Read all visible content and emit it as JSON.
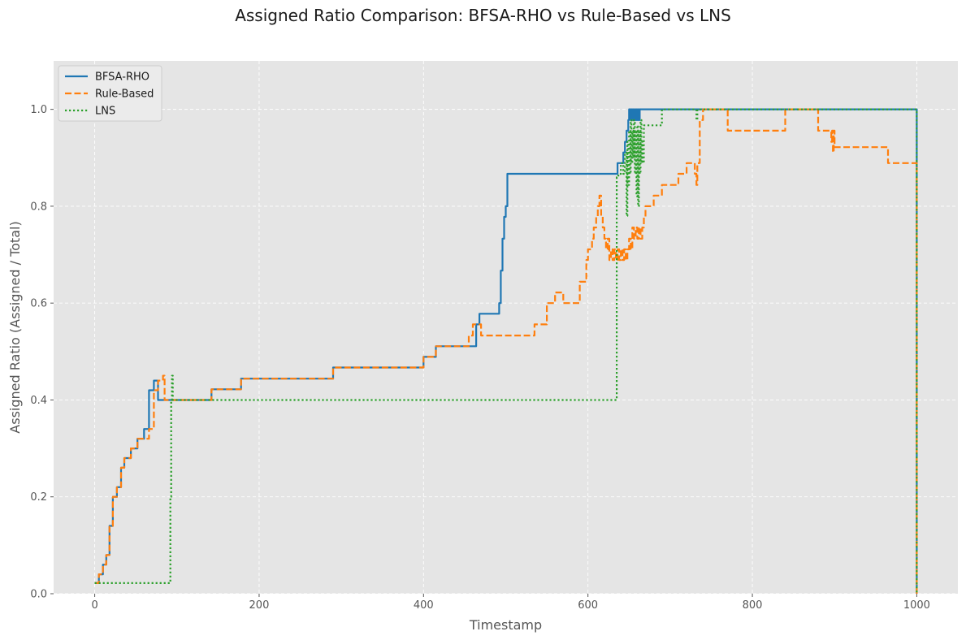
{
  "chart_data": {
    "type": "line",
    "title": "Assigned Ratio Comparison: BFSA-RHO vs Rule-Based vs LNS",
    "xlabel": "Timestamp",
    "ylabel": "Assigned Ratio (Assigned / Total)",
    "xlim": [
      -50,
      1050
    ],
    "ylim": [
      0.0,
      1.1
    ],
    "xticks": [
      0,
      200,
      400,
      600,
      800,
      1000
    ],
    "yticks": [
      0.0,
      0.2,
      0.4,
      0.6,
      0.8,
      1.0
    ],
    "xtick_labels": [
      "0",
      "200",
      "400",
      "600",
      "800",
      "1000"
    ],
    "ytick_labels": [
      "0.0",
      "0.2",
      "0.4",
      "0.6",
      "0.8",
      "1.0"
    ],
    "grid": true,
    "legend_position": "top-left",
    "series": [
      {
        "name": "BFSA-RHO",
        "color": "#1f77b4",
        "style": "solid",
        "x": [
          0,
          5,
          10,
          14,
          18,
          22,
          27,
          32,
          36,
          40,
          44,
          48,
          52,
          56,
          60,
          66,
          72,
          77,
          83,
          85,
          87,
          88,
          91,
          142,
          178,
          290,
          400,
          415,
          460,
          464,
          468,
          482,
          492,
          494,
          496,
          498,
          500,
          502,
          504,
          540,
          630,
          636,
          640,
          643,
          645,
          647,
          649,
          650,
          652,
          653,
          654,
          655,
          656,
          657,
          658,
          659,
          660,
          661,
          662,
          663,
          664,
          665,
          666,
          670,
          800,
          900,
          999,
          1000
        ],
        "y": [
          0.022,
          0.04,
          0.06,
          0.08,
          0.14,
          0.2,
          0.22,
          0.26,
          0.28,
          0.28,
          0.3,
          0.3,
          0.32,
          0.32,
          0.34,
          0.42,
          0.44,
          0.4,
          0.4,
          0.4,
          0.4,
          0.4,
          0.4,
          0.422,
          0.444,
          0.467,
          0.489,
          0.511,
          0.511,
          0.556,
          0.578,
          0.578,
          0.6,
          0.667,
          0.733,
          0.778,
          0.8,
          0.867,
          0.867,
          0.867,
          0.867,
          0.889,
          0.889,
          0.911,
          0.933,
          0.956,
          0.978,
          1.0,
          0.978,
          1.0,
          0.978,
          1.0,
          0.978,
          1.0,
          0.978,
          1.0,
          0.978,
          1.0,
          0.978,
          1.0,
          1.0,
          1.0,
          1.0,
          1.0,
          1.0,
          1.0,
          1.0,
          0.0
        ]
      },
      {
        "name": "Rule-Based",
        "color": "#ff7f0e",
        "style": "dashed",
        "x": [
          0,
          5,
          10,
          14,
          18,
          22,
          27,
          32,
          36,
          40,
          44,
          52,
          60,
          66,
          72,
          77,
          83,
          85,
          87,
          88,
          90,
          92,
          142,
          178,
          290,
          400,
          415,
          450,
          455,
          460,
          470,
          480,
          530,
          535,
          550,
          560,
          570,
          580,
          590,
          598,
          600,
          605,
          607,
          610,
          612,
          614,
          616,
          618,
          620,
          622,
          624,
          626,
          628,
          630,
          632,
          634,
          636,
          638,
          640,
          642,
          644,
          646,
          648,
          650,
          652,
          654,
          656,
          658,
          660,
          662,
          664,
          666,
          668,
          670,
          680,
          690,
          700,
          710,
          720,
          730,
          732,
          733,
          736,
          740,
          760,
          770,
          800,
          830,
          840,
          870,
          880,
          895,
          896,
          897,
          898,
          899,
          900,
          905,
          960,
          965,
          999,
          1000
        ],
        "y": [
          0.022,
          0.04,
          0.06,
          0.08,
          0.14,
          0.2,
          0.22,
          0.26,
          0.28,
          0.28,
          0.3,
          0.32,
          0.32,
          0.34,
          0.42,
          0.44,
          0.45,
          0.4,
          0.4,
          0.4,
          0.4,
          0.4,
          0.422,
          0.444,
          0.467,
          0.489,
          0.511,
          0.511,
          0.533,
          0.556,
          0.533,
          0.533,
          0.533,
          0.556,
          0.6,
          0.622,
          0.6,
          0.6,
          0.644,
          0.689,
          0.711,
          0.733,
          0.756,
          0.778,
          0.8,
          0.822,
          0.778,
          0.756,
          0.733,
          0.711,
          0.733,
          0.689,
          0.711,
          0.689,
          0.711,
          0.689,
          0.711,
          0.689,
          0.711,
          0.689,
          0.711,
          0.689,
          0.711,
          0.733,
          0.711,
          0.756,
          0.733,
          0.756,
          0.733,
          0.756,
          0.733,
          0.756,
          0.778,
          0.8,
          0.822,
          0.844,
          0.844,
          0.867,
          0.889,
          0.867,
          0.844,
          0.889,
          0.978,
          1.0,
          1.0,
          0.956,
          0.956,
          0.956,
          1.0,
          1.0,
          0.956,
          0.956,
          0.933,
          0.956,
          0.911,
          0.956,
          0.922,
          0.922,
          0.922,
          0.889,
          0.889,
          0.0
        ]
      },
      {
        "name": "LNS",
        "color": "#2ca02c",
        "style": "dotted",
        "x": [
          0,
          90,
          92,
          93,
          94,
          95,
          100,
          200,
          400,
          600,
          634,
          635,
          637,
          640,
          643,
          645,
          647,
          648,
          649,
          650,
          651,
          652,
          653,
          654,
          655,
          656,
          657,
          658,
          659,
          660,
          661,
          662,
          663,
          664,
          665,
          666,
          667,
          668,
          670,
          680,
          690,
          692,
          700,
          730,
          732,
          733,
          740,
          800,
          900,
          999,
          1000
        ],
        "y": [
          0.022,
          0.022,
          0.2,
          0.4,
          0.45,
          0.4,
          0.4,
          0.4,
          0.4,
          0.4,
          0.4,
          0.86,
          0.867,
          0.889,
          0.867,
          0.911,
          0.78,
          0.933,
          0.844,
          0.956,
          0.867,
          0.978,
          0.889,
          0.956,
          0.9,
          0.978,
          0.867,
          0.956,
          0.82,
          0.967,
          0.8,
          0.956,
          0.867,
          0.978,
          0.889,
          0.933,
          0.889,
          0.967,
          0.967,
          0.967,
          1.0,
          1.0,
          1.0,
          1.0,
          0.978,
          1.0,
          1.0,
          1.0,
          1.0,
          1.0,
          0.0
        ]
      }
    ]
  }
}
